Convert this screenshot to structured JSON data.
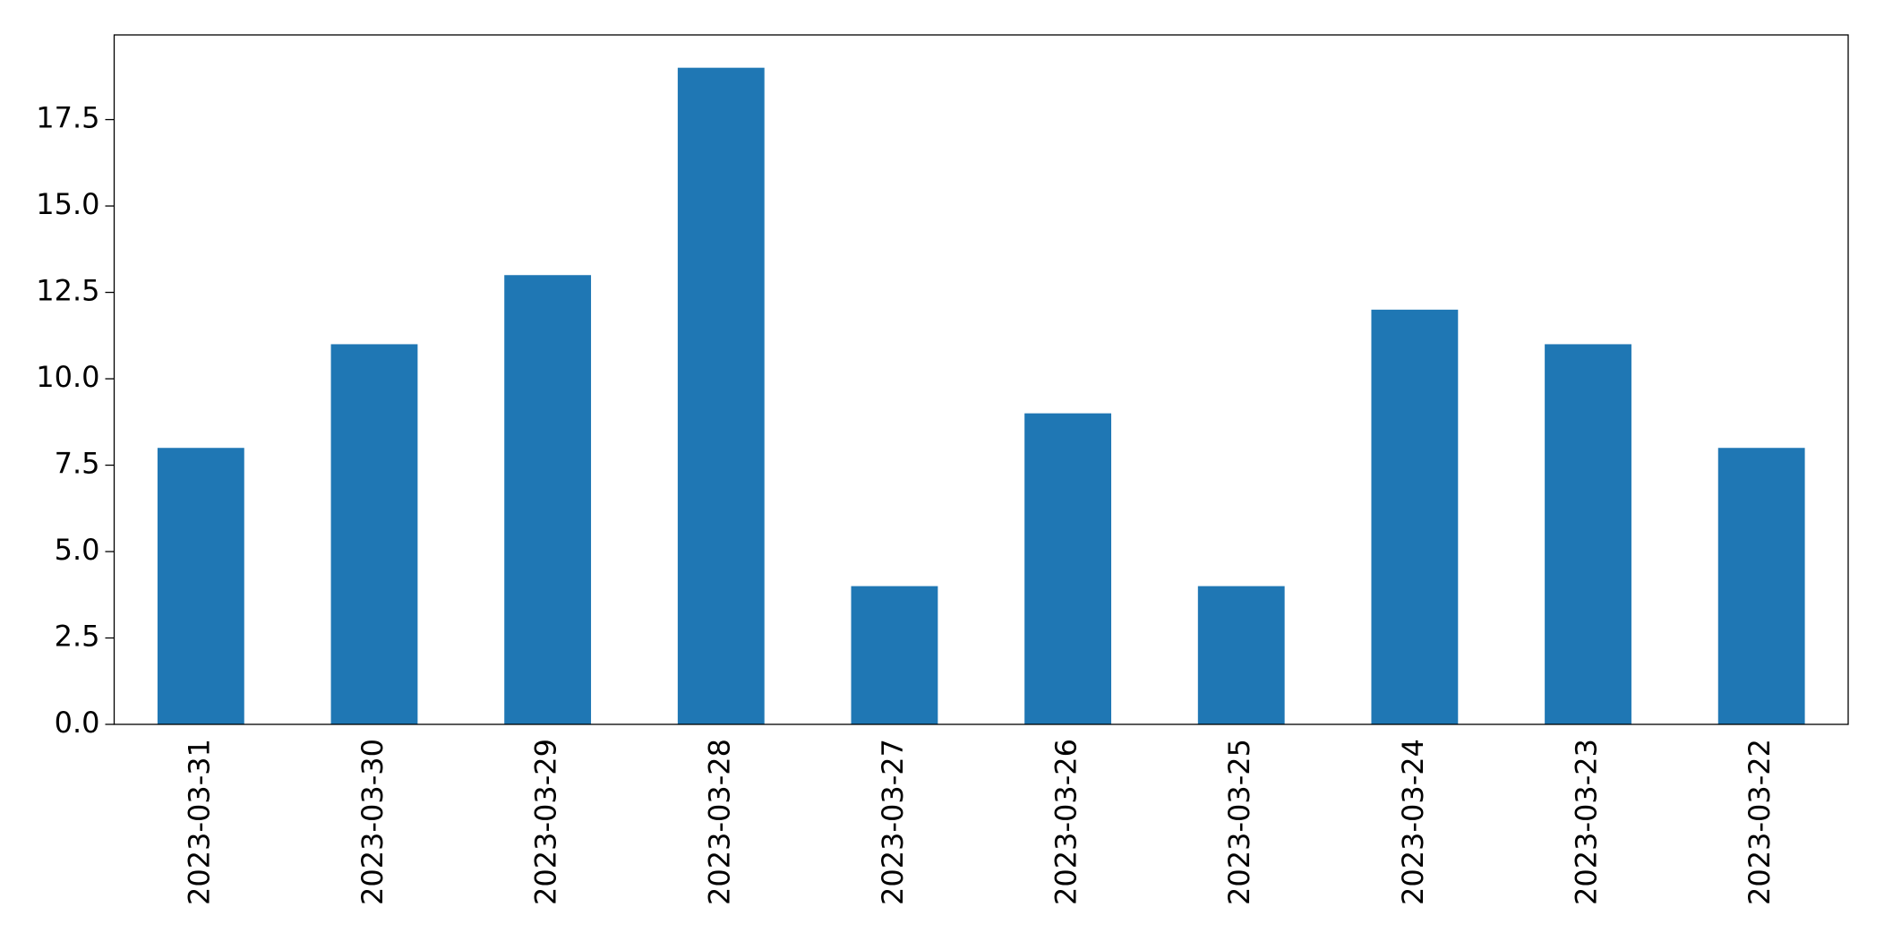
{
  "chart_data": {
    "type": "bar",
    "categories": [
      "2023-03-31",
      "2023-03-30",
      "2023-03-29",
      "2023-03-28",
      "2023-03-27",
      "2023-03-26",
      "2023-03-25",
      "2023-03-24",
      "2023-03-23",
      "2023-03-22"
    ],
    "values": [
      8,
      11,
      13,
      19,
      4,
      9,
      4,
      12,
      11,
      8
    ],
    "color": "#1f77b4",
    "ylim": [
      0,
      19.95
    ],
    "yticks": [
      {
        "value": 0,
        "label": "0.0"
      },
      2.5,
      {
        "value": 5,
        "label": "5.0"
      },
      7.5,
      {
        "value": 10,
        "label": "10.0"
      },
      12.5,
      {
        "value": 15,
        "label": "15.0"
      },
      17.5
    ],
    "grid": false
  }
}
